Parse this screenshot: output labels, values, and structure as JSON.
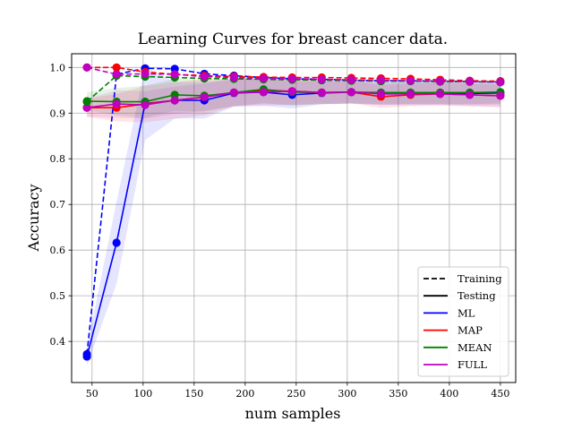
{
  "chart_data": {
    "type": "line",
    "title": "Learning Curves for breast cancer data.",
    "xlabel": "num samples",
    "ylabel": "Accuracy",
    "xlim": [
      30,
      465
    ],
    "ylim": [
      0.31,
      1.03
    ],
    "xticks": [
      50,
      100,
      150,
      200,
      250,
      300,
      350,
      400,
      450
    ],
    "yticks": [
      0.4,
      0.5,
      0.6,
      0.7,
      0.8,
      0.9,
      1.0
    ],
    "xtick_labels": [
      "50",
      "100",
      "150",
      "200",
      "250",
      "300",
      "350",
      "400",
      "450"
    ],
    "ytick_labels": [
      "0.4",
      "0.5",
      "0.6",
      "0.7",
      "0.8",
      "0.9",
      "1.0"
    ],
    "grid": true,
    "legend_position": "lower-right",
    "legend": {
      "style_entries": [
        {
          "label": "Training",
          "dash": "dashed"
        },
        {
          "label": "Testing",
          "dash": "solid"
        }
      ],
      "series_entries": [
        {
          "label": "ML",
          "color": "#0000ff"
        },
        {
          "label": "MAP",
          "color": "#ff0000"
        },
        {
          "label": "MEAN",
          "color": "#008000"
        },
        {
          "label": "FULL",
          "color": "#bf00bf"
        }
      ]
    },
    "x": [
      45,
      74,
      102,
      131,
      160,
      189,
      218,
      246,
      275,
      304,
      333,
      362,
      391,
      420,
      450
    ],
    "series": [
      {
        "name": "ML",
        "kind": "Training",
        "color": "#0000ff",
        "values": [
          0.372,
          0.985,
          0.998,
          0.997,
          0.986,
          0.982,
          0.978,
          0.975,
          0.974,
          0.972,
          0.971,
          0.971,
          0.97,
          0.969,
          0.968
        ],
        "band": null
      },
      {
        "name": "ML",
        "kind": "Testing",
        "color": "#0000ff",
        "values": [
          0.367,
          0.616,
          0.921,
          0.928,
          0.928,
          0.944,
          0.946,
          0.94,
          0.944,
          0.946,
          0.943,
          0.944,
          0.944,
          0.943,
          0.944
        ],
        "band": [
          0.02,
          0.09,
          0.08,
          0.04,
          0.04,
          0.03,
          0.03,
          0.03,
          0.025,
          0.025,
          0.025,
          0.025,
          0.025,
          0.025,
          0.025
        ]
      },
      {
        "name": "MAP",
        "kind": "Training",
        "color": "#ff0000",
        "values": [
          1.0,
          1.0,
          0.99,
          0.985,
          0.982,
          0.98,
          0.979,
          0.978,
          0.978,
          0.977,
          0.976,
          0.975,
          0.973,
          0.971,
          0.97
        ],
        "band": null
      },
      {
        "name": "MAP",
        "kind": "Testing",
        "color": "#ff0000",
        "values": [
          0.912,
          0.912,
          0.92,
          0.928,
          0.935,
          0.945,
          0.95,
          0.948,
          0.945,
          0.946,
          0.936,
          0.94,
          0.942,
          0.94,
          0.938
        ],
        "band": [
          0.02,
          0.03,
          0.04,
          0.04,
          0.04,
          0.03,
          0.03,
          0.03,
          0.025,
          0.025,
          0.025,
          0.025,
          0.025,
          0.025,
          0.025
        ]
      },
      {
        "name": "MEAN",
        "kind": "Training",
        "color": "#008000",
        "values": [
          0.925,
          0.982,
          0.98,
          0.978,
          0.976,
          0.975,
          0.974,
          0.973,
          0.972,
          0.971,
          0.97,
          0.97,
          0.969,
          0.969,
          0.968
        ],
        "band": null
      },
      {
        "name": "MEAN",
        "kind": "Testing",
        "color": "#008000",
        "values": [
          0.926,
          0.925,
          0.925,
          0.94,
          0.938,
          0.945,
          0.952,
          0.946,
          0.945,
          0.946,
          0.945,
          0.945,
          0.945,
          0.945,
          0.946
        ],
        "band": [
          0.02,
          0.03,
          0.035,
          0.035,
          0.035,
          0.03,
          0.03,
          0.03,
          0.025,
          0.025,
          0.025,
          0.025,
          0.025,
          0.025,
          0.025
        ]
      },
      {
        "name": "FULL",
        "kind": "Training",
        "color": "#bf00bf",
        "values": [
          1.0,
          0.985,
          0.986,
          0.985,
          0.98,
          0.978,
          0.976,
          0.975,
          0.974,
          0.973,
          0.972,
          0.971,
          0.97,
          0.969,
          0.968
        ],
        "band": null
      },
      {
        "name": "FULL",
        "kind": "Testing",
        "color": "#bf00bf",
        "values": [
          0.912,
          0.92,
          0.918,
          0.928,
          0.935,
          0.945,
          0.946,
          0.948,
          0.945,
          0.946,
          0.942,
          0.942,
          0.942,
          0.94,
          0.938
        ],
        "band": [
          0.02,
          0.03,
          0.03,
          0.03,
          0.03,
          0.03,
          0.03,
          0.03,
          0.025,
          0.025,
          0.025,
          0.025,
          0.025,
          0.025,
          0.025
        ]
      }
    ]
  }
}
